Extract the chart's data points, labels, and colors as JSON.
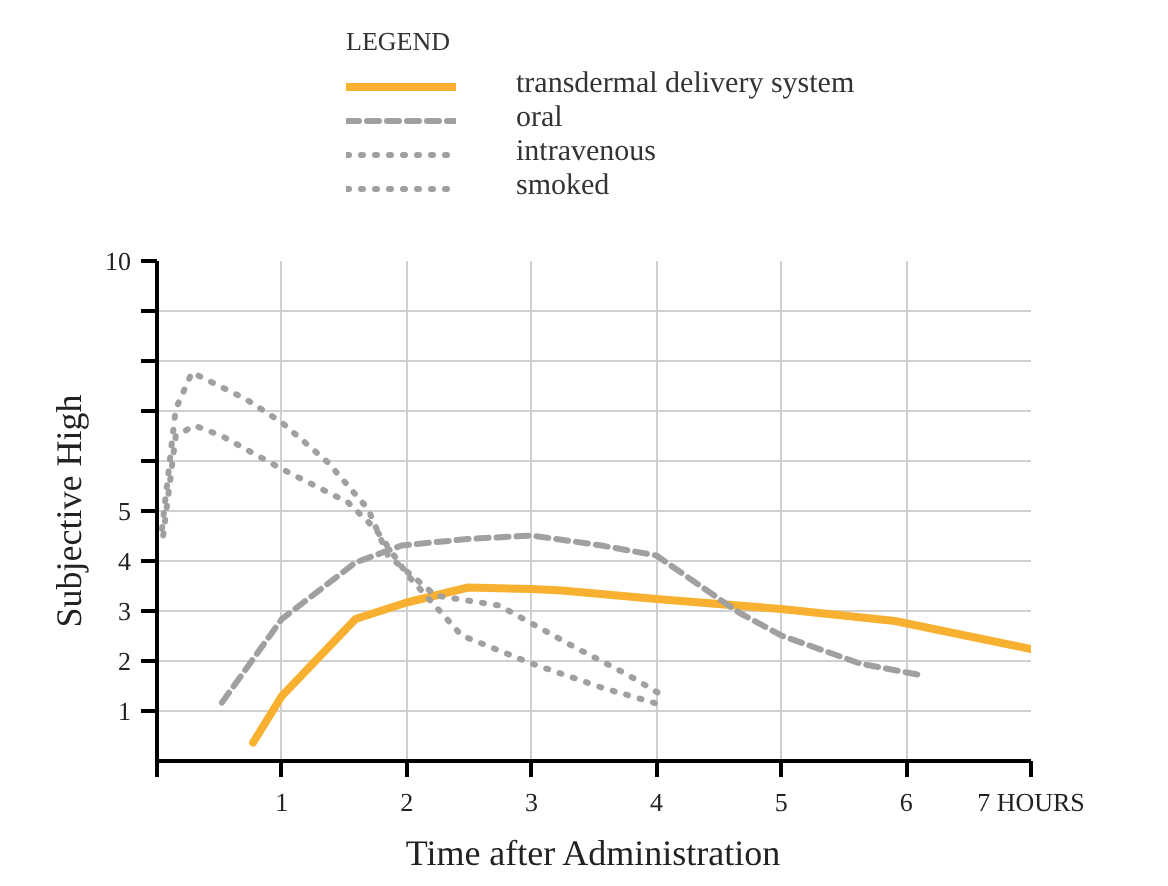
{
  "chart_data": {
    "type": "line",
    "xlabel": "Time after Administration",
    "ylabel": "Subjective High",
    "legend_title": "LEGEND",
    "legend": "top",
    "grid": true,
    "xlim": [
      0,
      7
    ],
    "xticks": [
      {
        "value": 0,
        "label": null
      },
      1,
      2,
      3,
      4,
      5,
      6,
      {
        "value": 7,
        "label": "7 HOURS"
      }
    ],
    "ylim": [
      0,
      10
    ],
    "yticks": [
      1,
      2,
      3,
      4,
      5,
      {
        "value": 6,
        "label": null
      },
      {
        "value": 7,
        "label": null
      },
      {
        "value": 8,
        "label": null
      },
      {
        "value": 9,
        "label": null
      },
      10
    ],
    "series": [
      {
        "name": "transdermal delivery system",
        "color": "#f7b030",
        "line_style": "solid",
        "x": [
          0.77,
          1.0,
          1.59,
          2.0,
          2.49,
          3.0,
          3.24,
          4.0,
          5.0,
          5.91,
          7.0
        ],
        "values": [
          0.37,
          1.3,
          2.84,
          3.17,
          3.47,
          3.44,
          3.41,
          3.24,
          3.04,
          2.8,
          2.24
        ]
      },
      {
        "name": "oral",
        "color": "#a0a0a0",
        "line_style": "dashed",
        "x": [
          0.52,
          1.0,
          1.59,
          1.96,
          2.49,
          3.0,
          3.56,
          4.0,
          4.66,
          5.0,
          5.63,
          6.09
        ],
        "values": [
          1.17,
          2.84,
          3.97,
          4.31,
          4.44,
          4.51,
          4.31,
          4.11,
          2.97,
          2.51,
          1.95,
          1.73
        ]
      },
      {
        "name": "intravenous",
        "color": "#a0a0a0",
        "line_style": "dotted",
        "x": [
          0.04,
          0.15,
          0.28,
          0.71,
          1.0,
          1.37,
          1.69,
          1.85,
          2.23,
          2.74,
          3.32,
          3.78,
          4.05
        ],
        "values": [
          4.64,
          7.04,
          7.77,
          7.24,
          6.77,
          5.97,
          5.04,
          4.11,
          3.31,
          3.11,
          2.31,
          1.71,
          1.31
        ]
      },
      {
        "name": "smoked",
        "color": "#a0a0a0",
        "line_style": "dotted",
        "x": [
          0.05,
          0.15,
          0.3,
          0.52,
          1.0,
          1.53,
          1.75,
          2.01,
          2.44,
          3.0,
          3.56,
          4.0
        ],
        "values": [
          4.51,
          6.5,
          6.71,
          6.5,
          5.84,
          5.17,
          4.64,
          3.71,
          2.51,
          1.95,
          1.47,
          1.15
        ]
      }
    ]
  }
}
